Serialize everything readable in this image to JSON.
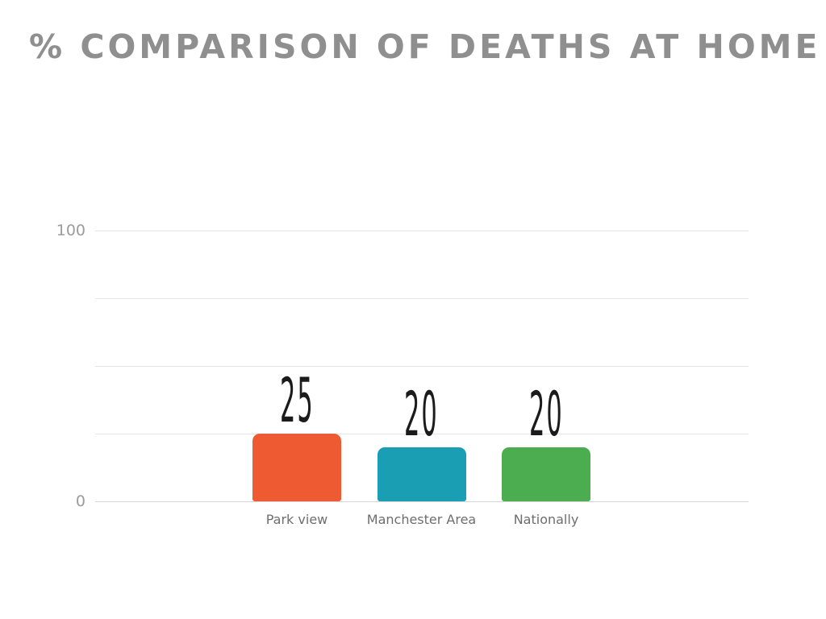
{
  "slide": {
    "background_color": "#FFFFFF"
  },
  "chart_data": {
    "type": "bar",
    "title": "% COMPARISON OF DEATHS AT HOME",
    "categories": [
      "Park view",
      "Manchester Area",
      "Nationally"
    ],
    "values": [
      25,
      20,
      20
    ],
    "value_labels": [
      "25",
      "20",
      "20"
    ],
    "bar_colors": [
      "#EE5B32",
      "#199EB4",
      "#4BAC50"
    ],
    "xlabel": "",
    "ylabel": "",
    "ylim": [
      0,
      100
    ],
    "yticks": [
      0,
      25,
      50,
      75,
      100
    ],
    "ytick_labels_shown": [
      "0",
      "100"
    ],
    "grid": "horizontal",
    "legend": "none",
    "theme": {
      "title_color": "#8F8F8F",
      "grid_color": "#E4E4E4",
      "axis_color": "#D6D6D6",
      "tick_label_color": "#9C9C9C",
      "category_label_color": "#6E6E6E",
      "value_label_color": "#1B1B1B"
    }
  }
}
